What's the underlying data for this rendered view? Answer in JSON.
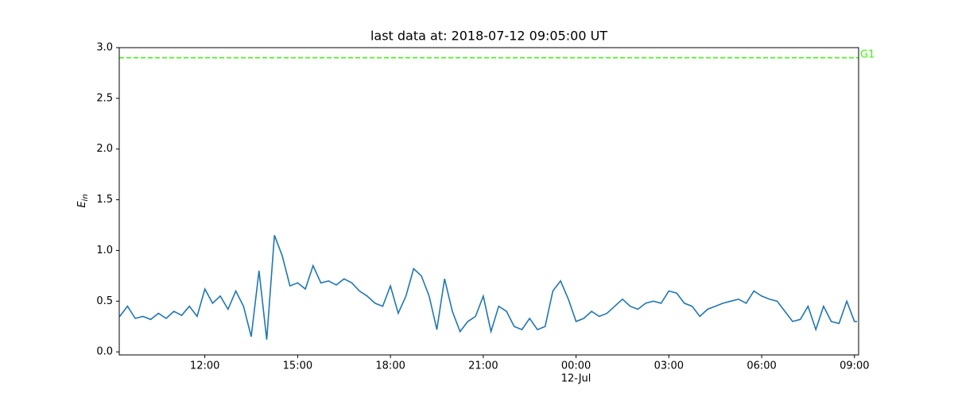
{
  "chart_data": {
    "type": "line",
    "title": "last data at: 2018-07-12 09:05:00 UT",
    "ylabel": "E",
    "ylabel_subscript": "in",
    "xlim": [
      "2018-07-11 09:14",
      "2018-07-12 09:08"
    ],
    "xticks": [
      {
        "value": "2018-07-11 12:00",
        "label": "12:00"
      },
      {
        "value": "2018-07-11 15:00",
        "label": "15:00"
      },
      {
        "value": "2018-07-11 18:00",
        "label": "18:00"
      },
      {
        "value": "2018-07-11 21:00",
        "label": "21:00"
      },
      {
        "value": "2018-07-12 00:00",
        "label": "00:00",
        "sublabel": "12-Jul"
      },
      {
        "value": "2018-07-12 03:00",
        "label": "03:00"
      },
      {
        "value": "2018-07-12 06:00",
        "label": "06:00"
      },
      {
        "value": "2018-07-12 09:00",
        "label": "09:00"
      }
    ],
    "ylim": [
      -0.03,
      3.0
    ],
    "yticks": [
      {
        "value": 0,
        "label": "0.0"
      },
      0.5,
      {
        "value": 1,
        "label": "1.0"
      },
      1.5,
      {
        "value": 2,
        "label": "2.0"
      },
      2.5,
      {
        "value": 3,
        "label": "3.0"
      }
    ],
    "hlines": [
      {
        "value": 2.9,
        "label": "G1",
        "color": "#33ff00"
      }
    ],
    "x": [
      "2018-07-11 09:15",
      "2018-07-11 09:30",
      "2018-07-11 09:45",
      "2018-07-11 10:00",
      "2018-07-11 10:15",
      "2018-07-11 10:30",
      "2018-07-11 10:45",
      "2018-07-11 11:00",
      "2018-07-11 11:15",
      "2018-07-11 11:30",
      "2018-07-11 11:45",
      "2018-07-11 12:00",
      "2018-07-11 12:15",
      "2018-07-11 12:30",
      "2018-07-11 12:45",
      "2018-07-11 13:00",
      "2018-07-11 13:15",
      "2018-07-11 13:30",
      "2018-07-11 13:45",
      "2018-07-11 14:00",
      "2018-07-11 14:15",
      "2018-07-11 14:30",
      "2018-07-11 14:45",
      "2018-07-11 15:00",
      "2018-07-11 15:15",
      "2018-07-11 15:30",
      "2018-07-11 15:45",
      "2018-07-11 16:00",
      "2018-07-11 16:15",
      "2018-07-11 16:30",
      "2018-07-11 16:45",
      "2018-07-11 17:00",
      "2018-07-11 17:15",
      "2018-07-11 17:30",
      "2018-07-11 17:45",
      "2018-07-11 18:00",
      "2018-07-11 18:15",
      "2018-07-11 18:30",
      "2018-07-11 18:45",
      "2018-07-11 19:00",
      "2018-07-11 19:15",
      "2018-07-11 19:30",
      "2018-07-11 19:45",
      "2018-07-11 20:00",
      "2018-07-11 20:15",
      "2018-07-11 20:30",
      "2018-07-11 20:45",
      "2018-07-11 21:00",
      "2018-07-11 21:15",
      "2018-07-11 21:30",
      "2018-07-11 21:45",
      "2018-07-11 22:00",
      "2018-07-11 22:15",
      "2018-07-11 22:30",
      "2018-07-11 22:45",
      "2018-07-11 23:00",
      "2018-07-11 23:15",
      "2018-07-11 23:30",
      "2018-07-11 23:45",
      "2018-07-12 00:00",
      "2018-07-12 00:15",
      "2018-07-12 00:30",
      "2018-07-12 00:45",
      "2018-07-12 01:00",
      "2018-07-12 01:15",
      "2018-07-12 01:30",
      "2018-07-12 01:45",
      "2018-07-12 02:00",
      "2018-07-12 02:15",
      "2018-07-12 02:30",
      "2018-07-12 02:45",
      "2018-07-12 03:00",
      "2018-07-12 03:15",
      "2018-07-12 03:30",
      "2018-07-12 03:45",
      "2018-07-12 04:00",
      "2018-07-12 04:15",
      "2018-07-12 04:30",
      "2018-07-12 04:45",
      "2018-07-12 05:00",
      "2018-07-12 05:15",
      "2018-07-12 05:30",
      "2018-07-12 05:45",
      "2018-07-12 06:00",
      "2018-07-12 06:15",
      "2018-07-12 06:30",
      "2018-07-12 06:45",
      "2018-07-12 07:00",
      "2018-07-12 07:15",
      "2018-07-12 07:30",
      "2018-07-12 07:45",
      "2018-07-12 08:00",
      "2018-07-12 08:15",
      "2018-07-12 08:30",
      "2018-07-12 08:45",
      "2018-07-12 09:00",
      "2018-07-12 09:05"
    ],
    "series": [
      {
        "color": "#1f77b4",
        "values": [
          0.35,
          0.45,
          0.33,
          0.35,
          0.32,
          0.38,
          0.33,
          0.4,
          0.36,
          0.45,
          0.35,
          0.62,
          0.48,
          0.55,
          0.42,
          0.6,
          0.45,
          0.15,
          0.8,
          0.12,
          1.15,
          0.95,
          0.65,
          0.68,
          0.62,
          0.85,
          0.68,
          0.7,
          0.66,
          0.72,
          0.68,
          0.6,
          0.55,
          0.48,
          0.45,
          0.65,
          0.38,
          0.55,
          0.82,
          0.75,
          0.55,
          0.22,
          0.72,
          0.4,
          0.2,
          0.3,
          0.35,
          0.55,
          0.2,
          0.45,
          0.4,
          0.25,
          0.22,
          0.33,
          0.22,
          0.25,
          0.6,
          0.7,
          0.52,
          0.3,
          0.33,
          0.4,
          0.35,
          0.38,
          0.45,
          0.52,
          0.45,
          0.42,
          0.48,
          0.5,
          0.48,
          0.6,
          0.58,
          0.48,
          0.45,
          0.35,
          0.42,
          0.45,
          0.48,
          0.5,
          0.52,
          0.48,
          0.6,
          0.55,
          0.52,
          0.5,
          0.4,
          0.3,
          0.32,
          0.45,
          0.22,
          0.45,
          0.3,
          0.28,
          0.5,
          0.3,
          0.3
        ]
      }
    ]
  }
}
